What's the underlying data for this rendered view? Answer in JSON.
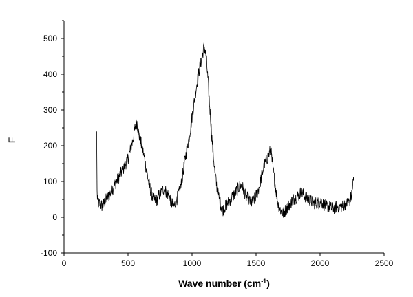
{
  "chart_data": {
    "type": "line",
    "title": "",
    "xlabel": {
      "main": "Wave number (cm",
      "sup": "-1",
      "close": ")"
    },
    "ylabel": "F",
    "xlim": [
      0,
      2500
    ],
    "ylim": [
      -100,
      550
    ],
    "x_ticks": [
      0,
      500,
      1000,
      1500,
      2000,
      2500
    ],
    "y_ticks": [
      -100,
      0,
      100,
      200,
      300,
      400,
      500
    ],
    "x_tick_labels": [
      "0",
      "500",
      "1000",
      "1500",
      "2000",
      "2500"
    ],
    "y_tick_labels": [
      "-100",
      "0",
      "100",
      "200",
      "300",
      "400",
      "500"
    ],
    "grid": false,
    "legend": "none",
    "line_color": "#000000",
    "series": [
      {
        "x": [
          255,
          258,
          262,
          270,
          285,
          300,
          320,
          350,
          380,
          410,
          440,
          470,
          500,
          520,
          540,
          555,
          570,
          585,
          600,
          620,
          640,
          660,
          680,
          700,
          720,
          740,
          760,
          780,
          800,
          820,
          840,
          860,
          880,
          900,
          920,
          940,
          960,
          980,
          1000,
          1020,
          1040,
          1060,
          1080,
          1095,
          1110,
          1125,
          1140,
          1160,
          1180,
          1200,
          1220,
          1240,
          1260,
          1280,
          1300,
          1320,
          1340,
          1360,
          1380,
          1400,
          1420,
          1440,
          1460,
          1480,
          1500,
          1520,
          1540,
          1560,
          1580,
          1600,
          1615,
          1630,
          1650,
          1670,
          1690,
          1710,
          1730,
          1750,
          1770,
          1790,
          1810,
          1830,
          1850,
          1870,
          1890,
          1910,
          1930,
          1950,
          1970,
          1990,
          2010,
          2030,
          2050,
          2070,
          2090,
          2110,
          2130,
          2150,
          2170,
          2190,
          2210,
          2230,
          2245,
          2255,
          2265
        ],
        "y": [
          240,
          70,
          45,
          40,
          35,
          30,
          45,
          60,
          80,
          100,
          120,
          140,
          165,
          190,
          220,
          250,
          265,
          230,
          210,
          180,
          140,
          100,
          70,
          50,
          45,
          60,
          70,
          80,
          70,
          60,
          40,
          30,
          50,
          70,
          100,
          150,
          190,
          230,
          280,
          330,
          380,
          420,
          450,
          480,
          450,
          380,
          300,
          200,
          120,
          70,
          40,
          20,
          30,
          40,
          50,
          60,
          70,
          80,
          90,
          80,
          60,
          50,
          40,
          45,
          60,
          80,
          110,
          140,
          160,
          175,
          190,
          140,
          90,
          40,
          20,
          10,
          20,
          30,
          40,
          50,
          55,
          60,
          70,
          65,
          55,
          50,
          45,
          40,
          40,
          40,
          45,
          35,
          30,
          30,
          25,
          25,
          30,
          30,
          30,
          35,
          40,
          45,
          60,
          90,
          110
        ]
      }
    ]
  }
}
